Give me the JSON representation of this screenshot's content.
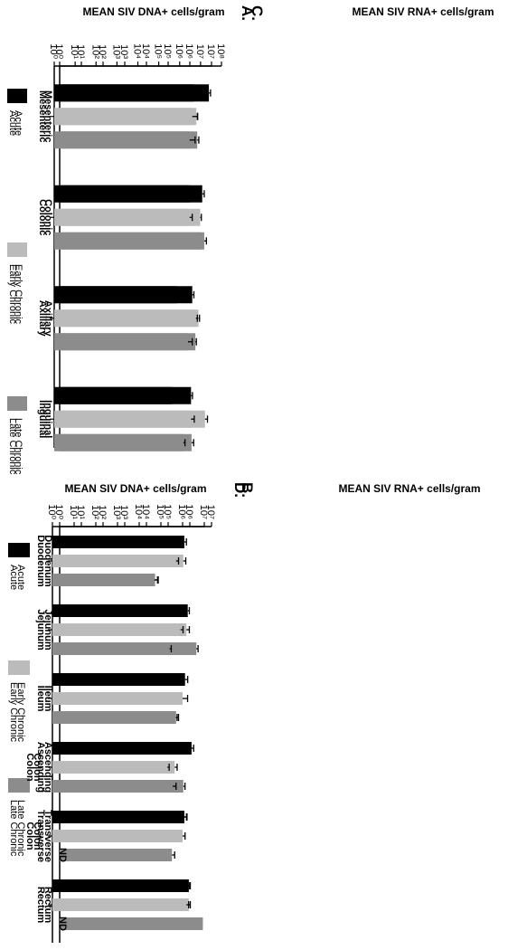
{
  "chart_data": [
    {
      "panel_label": "A.",
      "type": "bar",
      "ylabel": "MEAN SIV RNA+ cells/gram",
      "yscale": "log",
      "ylim": [
        1,
        10000000
      ],
      "yticks": [
        "10^0",
        "10^1",
        "10^2",
        "10^3",
        "10^4",
        "10^5",
        "10^6",
        "10^7"
      ],
      "categories": [
        "Mesenteric",
        "Colonic",
        "Axillary",
        "Inguinal"
      ],
      "series": [
        {
          "name": "Acute",
          "color": "#000000",
          "values": [
            1500000,
            1000000,
            250000,
            150000
          ],
          "errors": [
            200000,
            150000,
            30000,
            20000
          ]
        },
        {
          "name": "Early Chronic",
          "color": "#bbbbbb",
          "values": [
            2000000,
            3000000,
            2500000,
            5000000
          ],
          "errors": [
            300000,
            400000,
            300000,
            1500000
          ]
        },
        {
          "name": "Late Chronic",
          "color": "#8c8c8c",
          "values": [
            2200000,
            3200000,
            1800000,
            1200000
          ],
          "errors": [
            400000,
            300000,
            200000,
            300000
          ]
        }
      ]
    },
    {
      "panel_label": "B.",
      "type": "bar",
      "ylabel": "MEAN SIV RNA+ cells/gram",
      "yscale": "log",
      "ylim": [
        1,
        10000000
      ],
      "yticks": [
        "10^0",
        "10^1",
        "10^2",
        "10^3",
        "10^4",
        "10^5",
        "10^6",
        "10^7"
      ],
      "categories": [
        "Duodenum",
        "Jejunum",
        "Ileum",
        "Ascending Colon",
        "Transverse Colon",
        "Rectum"
      ],
      "series": [
        {
          "name": "Acute",
          "color": "#000000",
          "values": [
            300000,
            800000,
            600000,
            1200000,
            500000,
            900000
          ],
          "errors": [
            80000,
            150000,
            200000,
            300000,
            200000,
            150000
          ]
        },
        {
          "name": "Early Chronic",
          "color": "#bbbbbb",
          "values": [
            500000,
            700000,
            300000,
            200000,
            350000,
            900000
          ],
          "errors": [
            150000,
            250000,
            100000,
            60000,
            80000,
            150000
          ]
        },
        {
          "name": "Late Chronic",
          "color": "#8c8c8c",
          "values": [
            25000,
            2000000,
            200000,
            500000,
            150000,
            4000000
          ],
          "errors": [
            10000,
            400000,
            60000,
            100000,
            50000,
            0
          ]
        }
      ]
    },
    {
      "panel_label": "C.",
      "type": "bar",
      "ylabel": "MEAN SIV DNA+ cells/gram",
      "yscale": "log",
      "ylim": [
        1,
        100000000
      ],
      "yticks": [
        "10^0",
        "10^1",
        "10^2",
        "10^3",
        "10^4",
        "10^5",
        "10^6",
        "10^7",
        "10^8"
      ],
      "categories": [
        "Mesenteric",
        "Colonic",
        "Axillary",
        "Inguinal"
      ],
      "series": [
        {
          "name": "Acute",
          "color": "#000000",
          "values": [
            25000000,
            12000000,
            4000000,
            3500000
          ],
          "errors": [
            5000000,
            3000000,
            800000,
            600000
          ]
        },
        {
          "name": "Early Chronic",
          "color": "#bbbbbb",
          "values": [
            4000000,
            3000000,
            6000000,
            3500000
          ],
          "errors": [
            3000000,
            1000000,
            1000000,
            1500000
          ]
        },
        {
          "name": "Late Chronic",
          "color": "#8c8c8c",
          "values": [
            3000000,
            15000000,
            2500000,
            1500000
          ],
          "errors": [
            2500000,
            4000000,
            1500000,
            300000
          ]
        }
      ]
    },
    {
      "panel_label": "D.",
      "type": "bar",
      "ylabel": "MEAN SIV DNA+ cells/gram",
      "yscale": "log",
      "ylim": [
        1,
        10000000
      ],
      "yticks": [
        "10^0",
        "10^1",
        "10^2",
        "10^3",
        "10^4",
        "10^5",
        "10^6",
        "10^7"
      ],
      "categories": [
        "Duodenum",
        "Jejunum",
        "Ileum",
        "Ascending Colon",
        "Transverse Colon",
        "Rectum"
      ],
      "series": [
        {
          "name": "Acute",
          "color": "#000000",
          "values": [
            1200000,
            600000,
            1000000,
            2000000,
            1200000,
            1800000
          ],
          "errors": [
            300000,
            150000,
            200000,
            300000,
            400000,
            300000
          ]
        },
        {
          "name": "Early Chronic",
          "color": "#bbbbbb",
          "values": [
            500000,
            800000,
            1000000,
            200000,
            1000000,
            1500000
          ],
          "errors": [
            150000,
            250000,
            700000,
            40000,
            300000,
            400000
          ]
        },
        {
          "name": "Late Chronic",
          "color": "#8c8c8c",
          "values": [
            50000,
            250000,
            500000,
            350000,
            null,
            null
          ],
          "errors": [
            20000,
            50000,
            150000,
            150000,
            0,
            0
          ]
        }
      ],
      "missing_label": "ND"
    }
  ]
}
